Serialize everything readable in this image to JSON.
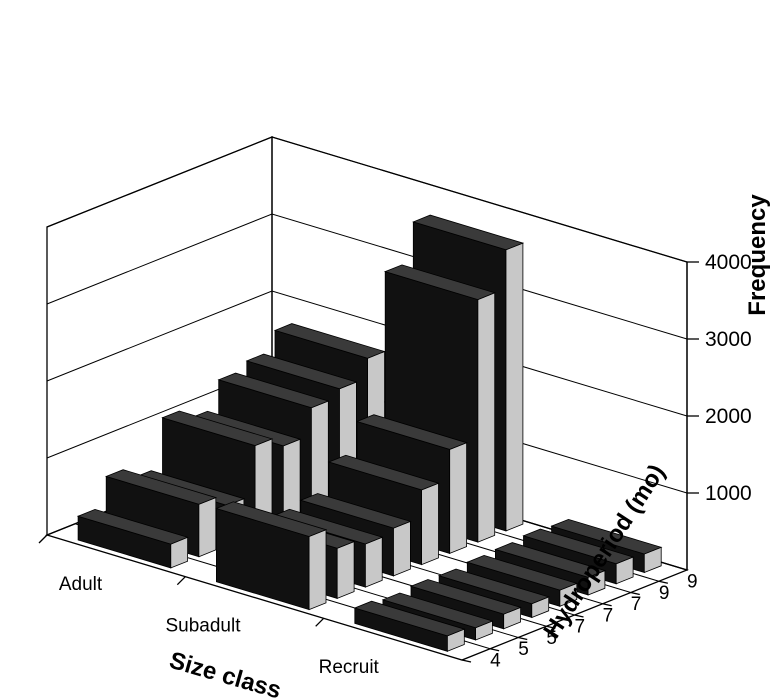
{
  "chart_data": {
    "type": "bar3d",
    "size_class_axis": {
      "title": "Size class",
      "categories": [
        "Adult",
        "Subadult",
        "Recruit"
      ]
    },
    "hydroperiod_axis": {
      "title": "Hydroperiod (mo)",
      "categories": [
        "4",
        "5",
        "5",
        "7",
        "7",
        "7",
        "9",
        "9"
      ]
    },
    "value_axis": {
      "title": "Frequency",
      "ticks": [
        "1000",
        "2000",
        "3000",
        "4000"
      ],
      "range": [
        0,
        4000
      ]
    },
    "grid": true,
    "series": [
      {
        "name": "Adult",
        "values": [
          310,
          680,
          520,
          1150,
          1000,
          1350,
          1450,
          1700
        ]
      },
      {
        "name": "Subadult",
        "values": [
          950,
          650,
          560,
          620,
          970,
          1350,
          3150,
          3650
        ]
      },
      {
        "name": "Recruit",
        "values": [
          200,
          160,
          190,
          180,
          210,
          230,
          260,
          240
        ]
      }
    ]
  },
  "colors": {
    "bar_front": "#111111",
    "bar_side": "#c8c8c8",
    "bar_top": "#3a3a3a"
  }
}
